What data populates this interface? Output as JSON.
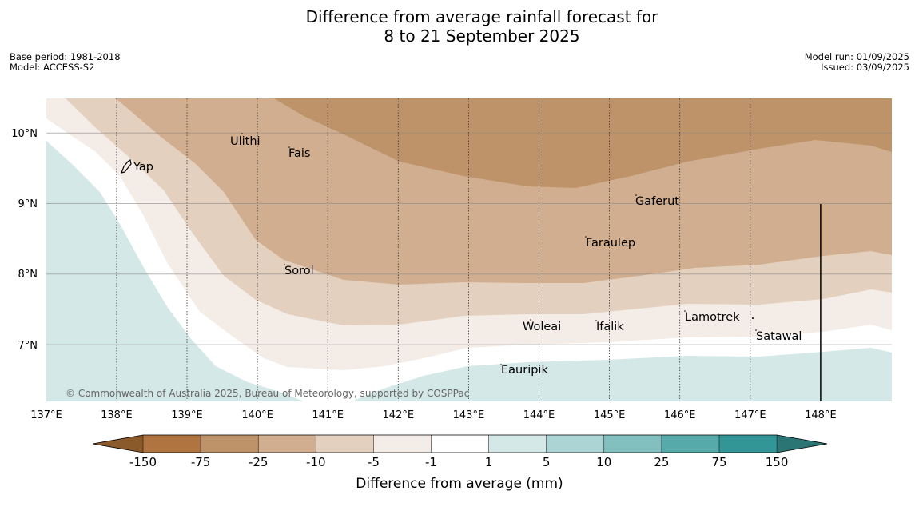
{
  "title": {
    "line1": "Difference from average rainfall forecast for",
    "line2": "8 to 21 September 2025"
  },
  "info_left": {
    "base_period": "Base period: 1981-2018",
    "model": "Model: ACCESS-S2"
  },
  "info_right": {
    "model_run": "Model run: 01/09/2025",
    "issued": "Issued: 03/09/2025"
  },
  "map": {
    "lon_labels": [
      "137°E",
      "138°E",
      "139°E",
      "140°E",
      "141°E",
      "142°E",
      "143°E",
      "144°E",
      "145°E",
      "146°E",
      "147°E",
      "148°E"
    ],
    "lat_labels": [
      "10°N",
      "9°N",
      "8°N",
      "7°N"
    ],
    "places": {
      "yap": "Yap",
      "ulithi": "Ulithi",
      "fais": "Fais",
      "sorol": "Sorol",
      "gaferut": "Gaferut",
      "faraulep": "Faraulep",
      "lamotrek": "Lamotrek",
      "woleai": "Woleai",
      "ifalik": "Ifalik",
      "satawal": "Satawal",
      "eauripik": "Eauripik"
    },
    "copyright": "© Commonwealth of Australia 2025, Bureau of Meteorology, supported by COSPPac"
  },
  "colorbar": {
    "ticks": [
      "-150",
      "-75",
      "-25",
      "-10",
      "-5",
      "-1",
      "1",
      "5",
      "10",
      "25",
      "75",
      "150"
    ],
    "colors": [
      "#8b5a2b",
      "#af7440",
      "#bf936a",
      "#d1ae8f",
      "#e4d0be",
      "#f4ece6",
      "#ffffff",
      "#d4e8e7",
      "#acd4d4",
      "#81c0bf",
      "#57aaaa",
      "#329696",
      "#2b7575"
    ],
    "label": "Difference from average (mm)"
  }
}
